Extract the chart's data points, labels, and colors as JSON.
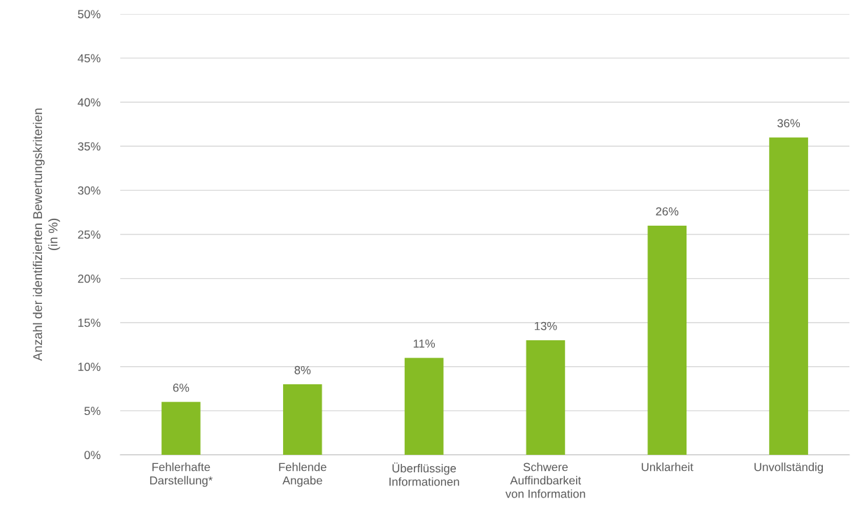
{
  "chart_data": {
    "type": "bar",
    "categories": [
      "Fehlerhafte\nDarstellung*",
      "Fehlende\nAngabe",
      "Überflüssige\nInformationen",
      "Schwere\nAuffindbarkeit\nvon Information",
      "Unklarheit",
      "Unvollständig"
    ],
    "values": [
      6,
      8,
      11,
      13,
      26,
      36
    ],
    "value_labels": [
      "6%",
      "8%",
      "11%",
      "13%",
      "26%",
      "36%"
    ],
    "color": "#86bc25",
    "ylabel": "Anzahl der identifizierten Bewertungskriterien\n(in %)",
    "ylim": [
      0,
      50
    ],
    "yticks": [
      {
        "value": 0,
        "label": "0%"
      },
      {
        "value": 5,
        "label": "5%"
      },
      {
        "value": 10,
        "label": "10%"
      },
      {
        "value": 15,
        "label": "15%"
      },
      {
        "value": 20,
        "label": "20%"
      },
      {
        "value": 25,
        "label": "25%"
      },
      {
        "value": 30,
        "label": "30%"
      },
      {
        "value": 35,
        "label": "35%"
      },
      {
        "value": 40,
        "label": "40%"
      },
      {
        "value": 45,
        "label": "45%"
      },
      {
        "value": 50,
        "label": "50%"
      }
    ],
    "grid": "y"
  }
}
